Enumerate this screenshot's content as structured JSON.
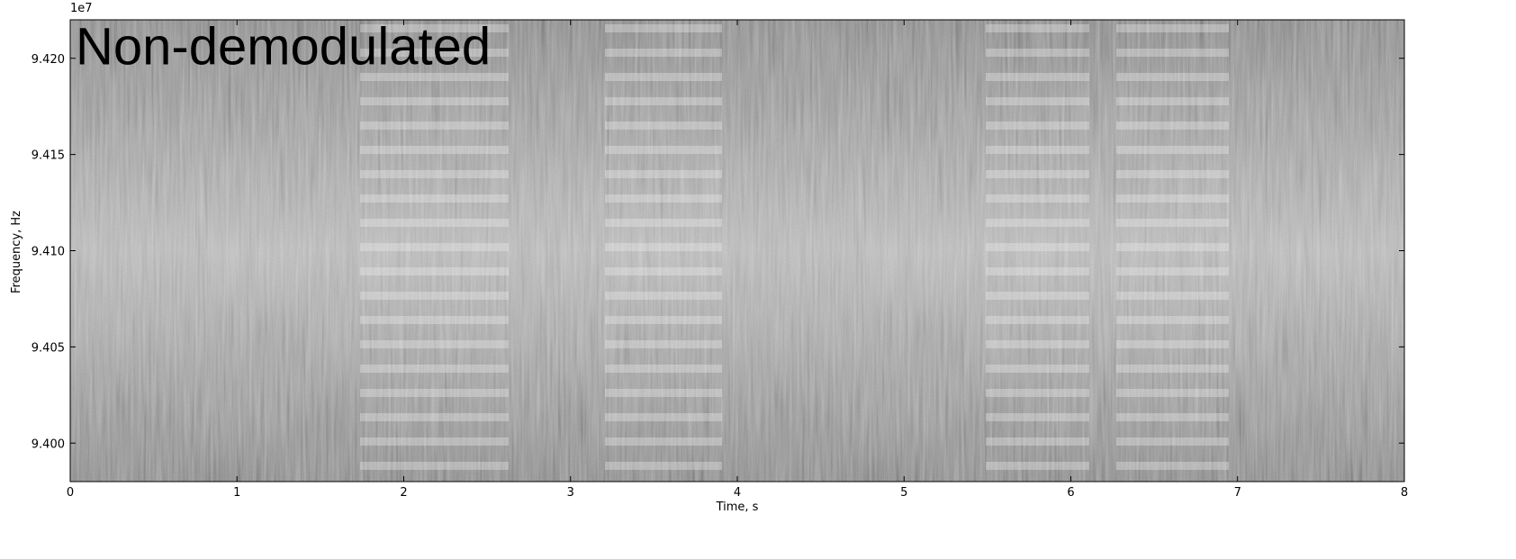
{
  "chart_data": {
    "type": "spectrogram",
    "title": "Non-demodulated",
    "x_label": "Time, s",
    "y_label": "Frequency, Hz",
    "y_offset_label": "1e7",
    "xlim": [
      0,
      8
    ],
    "xticks": [
      0,
      1,
      2,
      3,
      4,
      5,
      6,
      7,
      8
    ],
    "ylim": [
      9.398,
      9.422
    ],
    "yticks": [
      {
        "value": 9.4,
        "label": "9.400"
      },
      {
        "value": 9.405,
        "label": "9.405"
      },
      {
        "value": 9.41,
        "label": "9.410"
      },
      {
        "value": 9.415,
        "label": "9.415"
      },
      {
        "value": 9.42,
        "label": "9.420"
      }
    ],
    "colormap": "gray"
  }
}
